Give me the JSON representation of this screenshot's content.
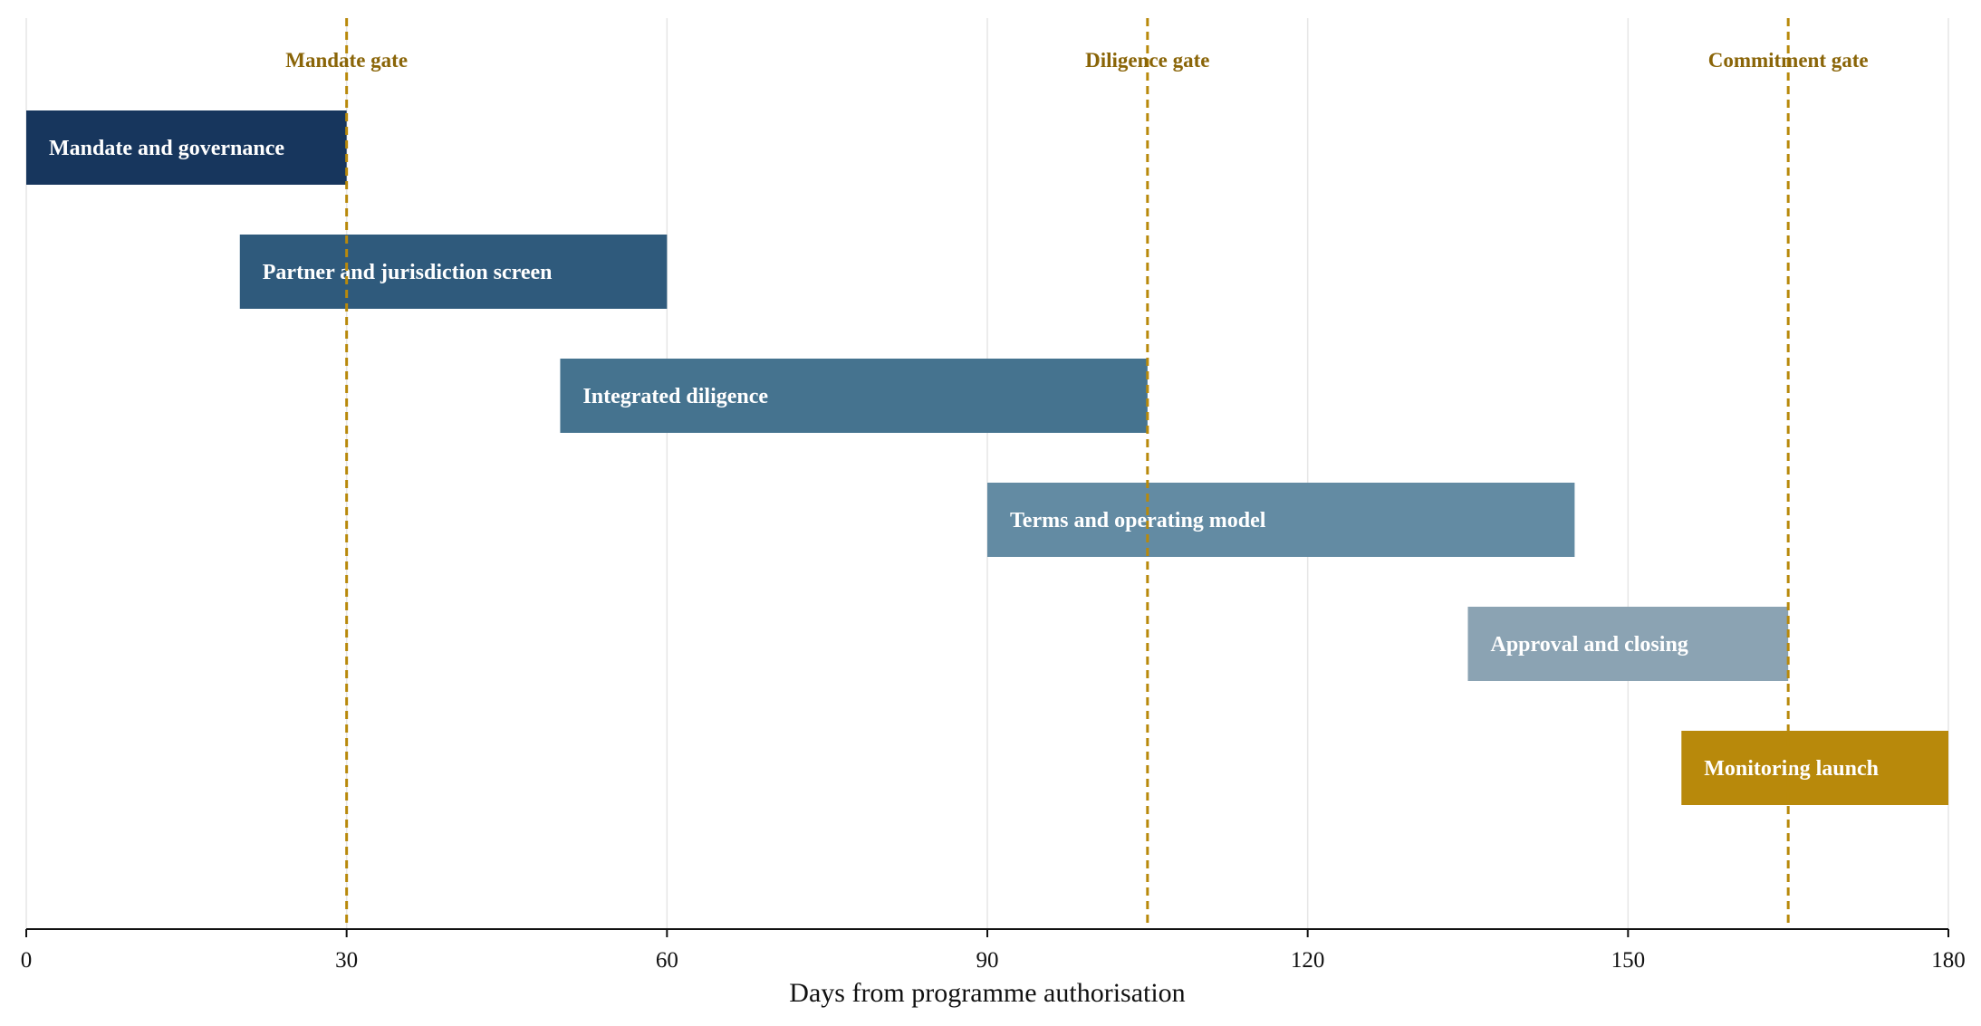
{
  "chart_data": {
    "type": "bar",
    "orientation": "horizontal",
    "title": "",
    "xlabel": "Days from programme authorisation",
    "ylabel": "",
    "xlim": [
      0,
      180
    ],
    "xticks": [
      0,
      30,
      60,
      90,
      120,
      150,
      180
    ],
    "grid": "vertical",
    "tasks": [
      {
        "name": "Mandate and governance",
        "start": 0,
        "end": 30,
        "color": "#17365d"
      },
      {
        "name": "Partner and jurisdiction screen",
        "start": 20,
        "end": 60,
        "color": "#2f5a7c"
      },
      {
        "name": "Integrated diligence",
        "start": 50,
        "end": 105,
        "color": "#45738f"
      },
      {
        "name": "Terms and operating model",
        "start": 90,
        "end": 145,
        "color": "#638ba3"
      },
      {
        "name": "Approval and closing",
        "start": 135,
        "end": 165,
        "color": "#8ba3b3"
      },
      {
        "name": "Monitoring launch",
        "start": 155,
        "end": 180,
        "color": "#b8890b"
      }
    ],
    "gates": [
      {
        "name": "Mandate gate",
        "x": 30
      },
      {
        "name": "Diligence gate",
        "x": 105
      },
      {
        "name": "Commitment gate",
        "x": 165
      }
    ],
    "colors": {
      "gate_line": "#b8890b",
      "gate_text": "#8a6508",
      "grid": "#e6e6e6",
      "axis": "#111111"
    }
  }
}
